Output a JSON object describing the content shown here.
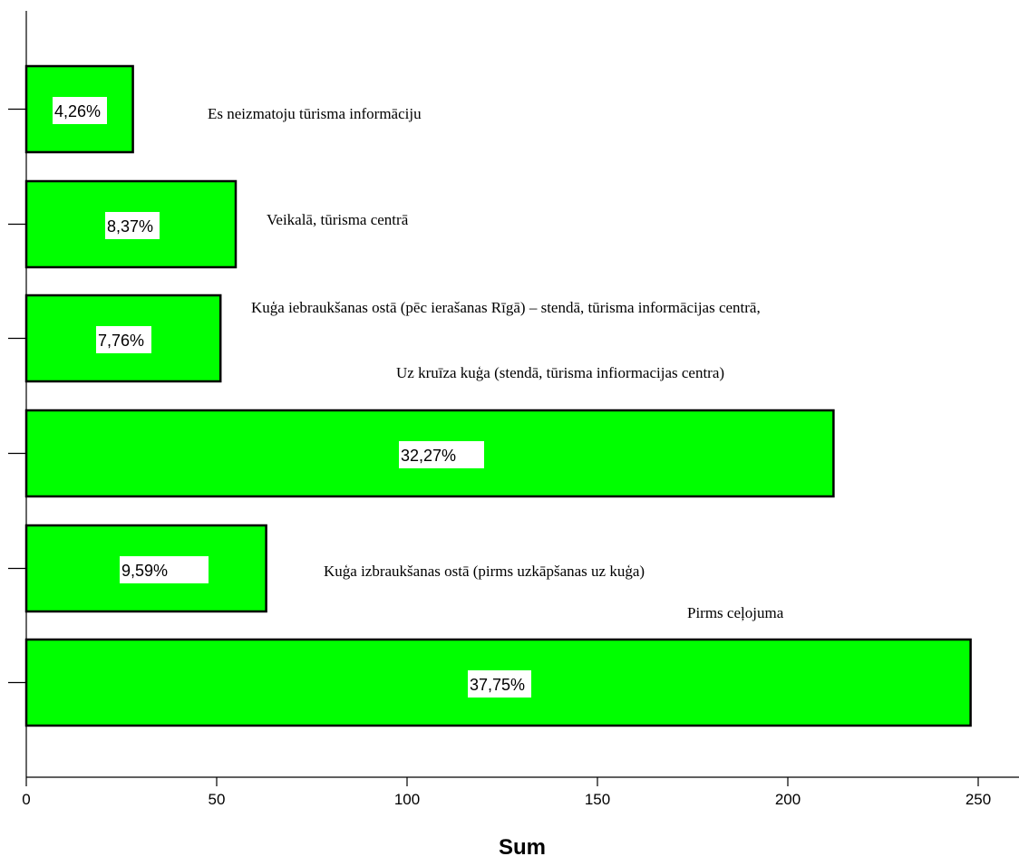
{
  "chart_data": {
    "type": "bar",
    "orientation": "horizontal",
    "xlabel": "Sum",
    "ylabel": "",
    "xlim": [
      0,
      260
    ],
    "xticks": [
      0,
      50,
      100,
      150,
      200,
      250
    ],
    "grid": false,
    "bar_color": "#00ff00",
    "categories": [
      "Es neizmatoju tūrisma informāciju",
      "Veikalā, tūrisma centrā",
      "Kuģa iebraukšanas ostā (pēc ierašanas Rīgā) – stendā, tūrisma informācijas centrā,",
      "Uz kruīza kuģa (stendā, tūrisma infiormacijas centra)",
      "Kuģa izbraukšanas ostā (pirms uzkāpšanas uz kuģa)",
      "Pirms ceļojuma"
    ],
    "values": [
      28,
      55,
      51,
      212,
      63,
      248
    ],
    "percent_labels": [
      "4,26%",
      "8,37%",
      "7,76%",
      "32,27%",
      "9,59%",
      "37,75%"
    ]
  }
}
